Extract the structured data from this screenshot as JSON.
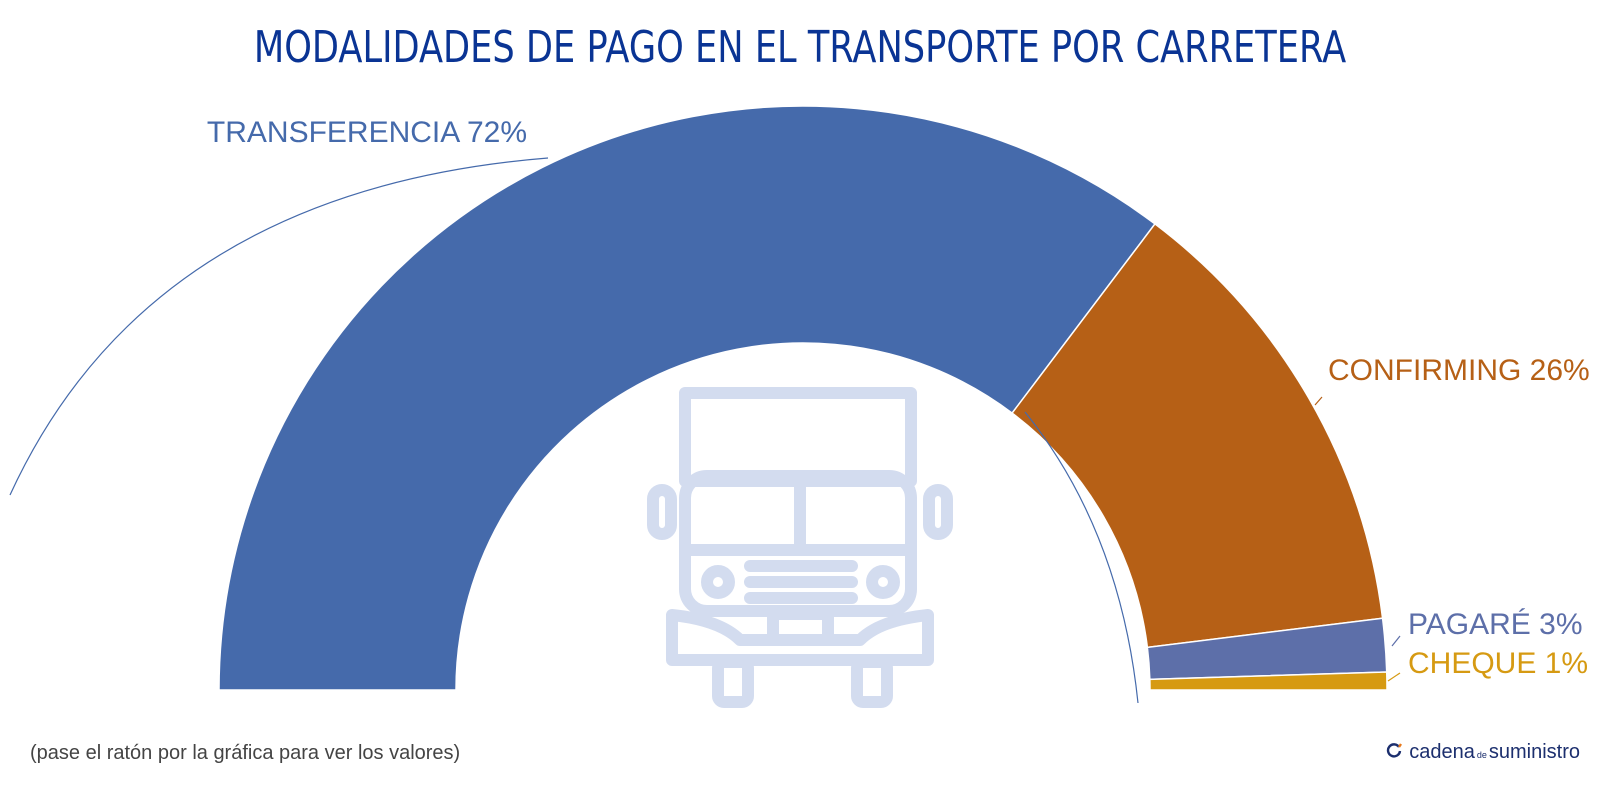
{
  "title": "MODALIDADES DE PAGO EN EL TRANSPORTE POR CARRETERA",
  "hint": "(pase el ratón por la gráfica para ver los valores)",
  "brand": {
    "part1": "cadena",
    "part2": "de",
    "part3": "suministro"
  },
  "colors": {
    "title": "#0a3494",
    "truck_icon": "#d3dcef"
  },
  "icons": {
    "center": "truck-icon",
    "logo": "refresh-circle-icon"
  },
  "chart_data": {
    "type": "pie",
    "variant": "semi-donut",
    "title": "MODALIDADES DE PAGO EN EL TRANSPORTE POR CARRETERA",
    "slices": [
      {
        "label": "TRANSFERENCIA",
        "value": 72,
        "value_label": "72%",
        "color": "#456aab"
      },
      {
        "label": "CONFIRMING",
        "value": 26,
        "value_label": "26%",
        "color": "#b66016"
      },
      {
        "label": "PAGARÉ",
        "value": 3,
        "value_label": "3%",
        "color": "#5d6fa9"
      },
      {
        "label": "CHEQUE",
        "value": 1,
        "value_label": "1%",
        "color": "#d69a12"
      }
    ]
  }
}
